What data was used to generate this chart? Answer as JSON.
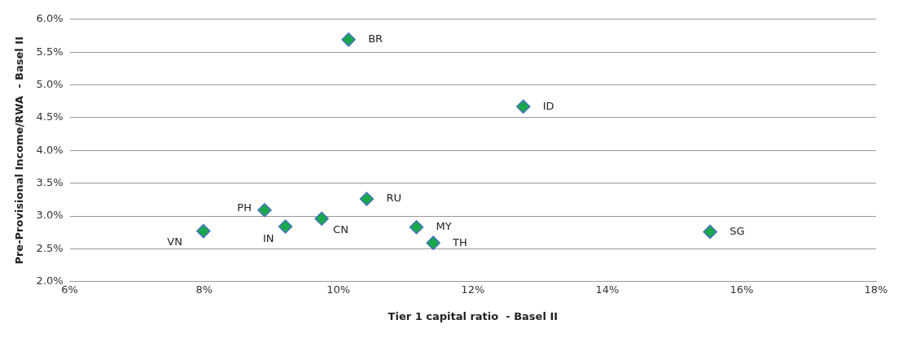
{
  "chart_data": {
    "type": "scatter",
    "xlabel": "Tier 1 capital ratio  - Basel II",
    "ylabel": "Pre-Provisional Income/RWA  - Basel II",
    "x": [
      10.15,
      12.75,
      15.53,
      11.41,
      11.16,
      10.42,
      9.75,
      9.21,
      8.9,
      7.99
    ],
    "series": [
      {
        "color": "#1aa84a",
        "values": [
          5.69,
          4.67,
          2.76,
          2.59,
          2.83,
          3.26,
          2.96,
          2.84,
          3.09,
          2.77
        ]
      }
    ],
    "marker": "diamond",
    "grid": "y",
    "legend": false,
    "xlim": [
      6,
      18
    ],
    "xticks": [
      {
        "value": 6,
        "label": "6%"
      },
      {
        "value": 8,
        "label": "8%"
      },
      {
        "value": 10,
        "label": "10%"
      },
      {
        "value": 12,
        "label": "12%"
      },
      {
        "value": 14,
        "label": "14%"
      },
      {
        "value": 16,
        "label": "16%"
      },
      {
        "value": 18,
        "label": "18%"
      }
    ],
    "ylim": [
      2,
      6
    ],
    "yticks": [
      {
        "value": 2,
        "label": "2.0%"
      },
      {
        "value": 2.5,
        "label": "2.5%"
      },
      {
        "value": 3,
        "label": "3.0%"
      },
      {
        "value": 3.5,
        "label": "3.5%"
      },
      {
        "value": 4,
        "label": "4.0%"
      },
      {
        "value": 4.5,
        "label": "4.5%"
      },
      {
        "value": 5,
        "label": "5.0%"
      },
      {
        "value": 5.5,
        "label": "5.5%"
      },
      {
        "value": 6,
        "label": "6.0%"
      }
    ],
    "annotations": [
      {
        "text": "BR",
        "x": 10.15,
        "y": 5.69
      },
      {
        "text": "ID",
        "x": 12.75,
        "y": 4.67
      },
      {
        "text": "SG",
        "x": 15.53,
        "y": 2.76
      },
      {
        "text": "TH",
        "x": 11.41,
        "y": 2.59
      },
      {
        "text": "MY",
        "x": 11.16,
        "y": 2.83
      },
      {
        "text": "RU",
        "x": 10.42,
        "y": 3.26
      },
      {
        "text": "CN",
        "x": 9.75,
        "y": 2.96
      },
      {
        "text": "IN",
        "x": 9.21,
        "y": 2.84
      },
      {
        "text": "PH",
        "x": 8.9,
        "y": 3.09
      },
      {
        "text": "VN",
        "x": 7.99,
        "y": 2.77
      }
    ]
  }
}
